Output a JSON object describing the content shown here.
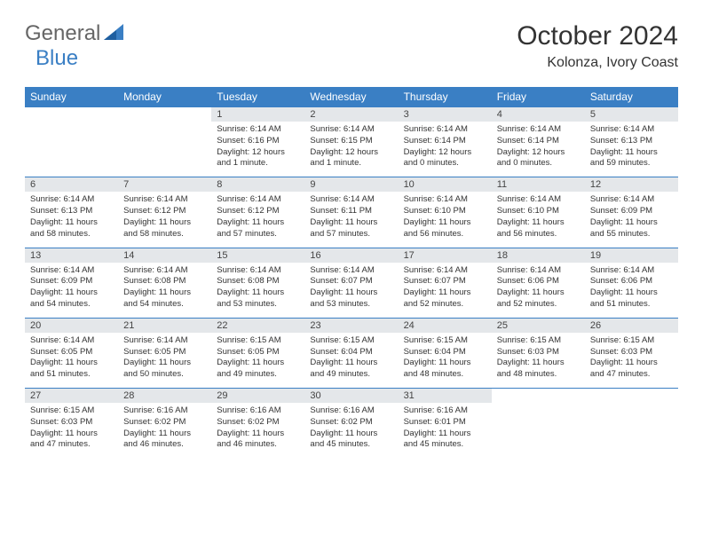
{
  "brand": {
    "part1": "General",
    "part2": "Blue"
  },
  "title": "October 2024",
  "location": "Kolonza, Ivory Coast",
  "colors": {
    "header_bg": "#3a7fc4",
    "daynum_bg": "#e4e7ea",
    "row_border": "#3a7fc4",
    "text": "#333333",
    "brand_gray": "#666666",
    "brand_blue": "#3a7fc4",
    "page_bg": "#ffffff"
  },
  "weekdays": [
    "Sunday",
    "Monday",
    "Tuesday",
    "Wednesday",
    "Thursday",
    "Friday",
    "Saturday"
  ],
  "layout": {
    "columns": 7,
    "rows": 5,
    "first_day_column_index": 2
  },
  "days": [
    {
      "n": 1,
      "sr": "6:14 AM",
      "ss": "6:16 PM",
      "dl": "12 hours and 1 minute."
    },
    {
      "n": 2,
      "sr": "6:14 AM",
      "ss": "6:15 PM",
      "dl": "12 hours and 1 minute."
    },
    {
      "n": 3,
      "sr": "6:14 AM",
      "ss": "6:14 PM",
      "dl": "12 hours and 0 minutes."
    },
    {
      "n": 4,
      "sr": "6:14 AM",
      "ss": "6:14 PM",
      "dl": "12 hours and 0 minutes."
    },
    {
      "n": 5,
      "sr": "6:14 AM",
      "ss": "6:13 PM",
      "dl": "11 hours and 59 minutes."
    },
    {
      "n": 6,
      "sr": "6:14 AM",
      "ss": "6:13 PM",
      "dl": "11 hours and 58 minutes."
    },
    {
      "n": 7,
      "sr": "6:14 AM",
      "ss": "6:12 PM",
      "dl": "11 hours and 58 minutes."
    },
    {
      "n": 8,
      "sr": "6:14 AM",
      "ss": "6:12 PM",
      "dl": "11 hours and 57 minutes."
    },
    {
      "n": 9,
      "sr": "6:14 AM",
      "ss": "6:11 PM",
      "dl": "11 hours and 57 minutes."
    },
    {
      "n": 10,
      "sr": "6:14 AM",
      "ss": "6:10 PM",
      "dl": "11 hours and 56 minutes."
    },
    {
      "n": 11,
      "sr": "6:14 AM",
      "ss": "6:10 PM",
      "dl": "11 hours and 56 minutes."
    },
    {
      "n": 12,
      "sr": "6:14 AM",
      "ss": "6:09 PM",
      "dl": "11 hours and 55 minutes."
    },
    {
      "n": 13,
      "sr": "6:14 AM",
      "ss": "6:09 PM",
      "dl": "11 hours and 54 minutes."
    },
    {
      "n": 14,
      "sr": "6:14 AM",
      "ss": "6:08 PM",
      "dl": "11 hours and 54 minutes."
    },
    {
      "n": 15,
      "sr": "6:14 AM",
      "ss": "6:08 PM",
      "dl": "11 hours and 53 minutes."
    },
    {
      "n": 16,
      "sr": "6:14 AM",
      "ss": "6:07 PM",
      "dl": "11 hours and 53 minutes."
    },
    {
      "n": 17,
      "sr": "6:14 AM",
      "ss": "6:07 PM",
      "dl": "11 hours and 52 minutes."
    },
    {
      "n": 18,
      "sr": "6:14 AM",
      "ss": "6:06 PM",
      "dl": "11 hours and 52 minutes."
    },
    {
      "n": 19,
      "sr": "6:14 AM",
      "ss": "6:06 PM",
      "dl": "11 hours and 51 minutes."
    },
    {
      "n": 20,
      "sr": "6:14 AM",
      "ss": "6:05 PM",
      "dl": "11 hours and 51 minutes."
    },
    {
      "n": 21,
      "sr": "6:14 AM",
      "ss": "6:05 PM",
      "dl": "11 hours and 50 minutes."
    },
    {
      "n": 22,
      "sr": "6:15 AM",
      "ss": "6:05 PM",
      "dl": "11 hours and 49 minutes."
    },
    {
      "n": 23,
      "sr": "6:15 AM",
      "ss": "6:04 PM",
      "dl": "11 hours and 49 minutes."
    },
    {
      "n": 24,
      "sr": "6:15 AM",
      "ss": "6:04 PM",
      "dl": "11 hours and 48 minutes."
    },
    {
      "n": 25,
      "sr": "6:15 AM",
      "ss": "6:03 PM",
      "dl": "11 hours and 48 minutes."
    },
    {
      "n": 26,
      "sr": "6:15 AM",
      "ss": "6:03 PM",
      "dl": "11 hours and 47 minutes."
    },
    {
      "n": 27,
      "sr": "6:15 AM",
      "ss": "6:03 PM",
      "dl": "11 hours and 47 minutes."
    },
    {
      "n": 28,
      "sr": "6:16 AM",
      "ss": "6:02 PM",
      "dl": "11 hours and 46 minutes."
    },
    {
      "n": 29,
      "sr": "6:16 AM",
      "ss": "6:02 PM",
      "dl": "11 hours and 46 minutes."
    },
    {
      "n": 30,
      "sr": "6:16 AM",
      "ss": "6:02 PM",
      "dl": "11 hours and 45 minutes."
    },
    {
      "n": 31,
      "sr": "6:16 AM",
      "ss": "6:01 PM",
      "dl": "11 hours and 45 minutes."
    }
  ],
  "labels": {
    "sunrise": "Sunrise:",
    "sunset": "Sunset:",
    "daylight": "Daylight:"
  }
}
